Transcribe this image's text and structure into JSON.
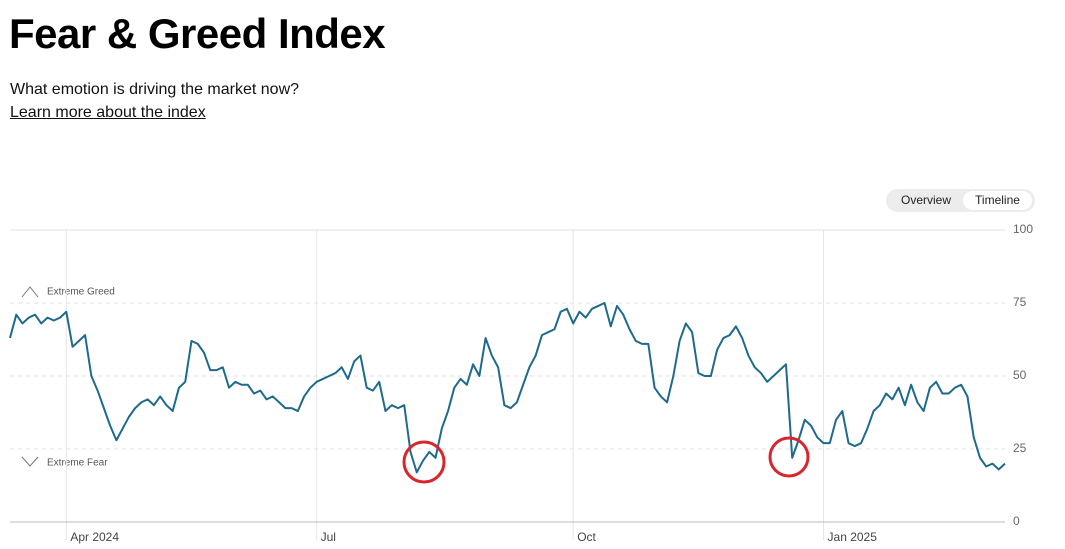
{
  "title": "Fear & Greed Index",
  "subtitle": "What emotion is driving the market now?",
  "link": "Learn more about the index",
  "toggle": [
    "Overview",
    "Timeline"
  ],
  "chart_data": {
    "type": "line",
    "annotations": [
      "Extreme Greed",
      "Extreme Fear"
    ],
    "categories": [
      null,
      null,
      null,
      null,
      null,
      null,
      null,
      null,
      null,
      "Apr 2024",
      null,
      null,
      null,
      null,
      null,
      null,
      null,
      null,
      null,
      null,
      null,
      null,
      null,
      null,
      null,
      null,
      null,
      null,
      null,
      null,
      null,
      null,
      null,
      null,
      null,
      null,
      null,
      null,
      null,
      null,
      null,
      null,
      null,
      null,
      null,
      null,
      null,
      null,
      null,
      "Jul",
      null,
      null,
      null,
      null,
      null,
      null,
      null,
      null,
      null,
      null,
      null,
      null,
      null,
      null,
      null,
      null,
      null,
      null,
      null,
      null,
      null,
      null,
      null,
      null,
      null,
      null,
      null,
      null,
      null,
      null,
      null,
      null,
      null,
      null,
      null,
      null,
      null,
      null,
      null,
      null,
      "Oct",
      null,
      null,
      null,
      null,
      null,
      null,
      null,
      null,
      null,
      null,
      null,
      null,
      null,
      null,
      null,
      null,
      null,
      null,
      null,
      null,
      null,
      null,
      null,
      null,
      null,
      null,
      null,
      null,
      null,
      null,
      null,
      null,
      null,
      null,
      null,
      null,
      null,
      null,
      null,
      "Jan 2025",
      null,
      null,
      null,
      null,
      null,
      null,
      null,
      null,
      null,
      null,
      null,
      null,
      null,
      null,
      null,
      null,
      null,
      null,
      null,
      null,
      null,
      null,
      null,
      null,
      null,
      null,
      null,
      null,
      null
    ],
    "values": [
      63,
      71,
      68,
      70,
      71,
      68,
      70,
      69,
      70,
      72,
      60,
      62,
      64,
      50,
      45,
      39,
      33,
      28,
      32,
      36,
      39,
      41,
      42,
      40,
      43,
      40,
      38,
      46,
      48,
      62,
      61,
      58,
      52,
      52,
      53,
      46,
      48,
      47,
      47,
      44,
      45,
      42,
      43,
      41,
      39,
      39,
      38,
      43,
      46,
      48,
      49,
      50,
      51,
      53,
      49,
      55,
      57,
      46,
      45,
      48,
      38,
      40,
      39,
      40,
      24,
      17,
      21,
      24,
      22,
      32,
      38,
      46,
      49,
      47,
      54,
      50,
      63,
      57,
      53,
      40,
      39,
      41,
      47,
      53,
      57,
      64,
      65,
      66,
      72,
      73,
      68,
      72,
      70,
      73,
      74,
      75,
      67,
      74,
      71,
      66,
      62,
      61,
      61,
      46,
      43,
      41,
      50,
      62,
      68,
      65,
      51,
      50,
      50,
      59,
      63,
      64,
      67,
      63,
      57,
      53,
      51,
      48,
      50,
      52,
      54,
      22,
      28,
      35,
      33,
      29,
      27,
      27,
      35,
      38,
      27,
      26,
      27,
      32,
      38,
      40,
      44,
      42,
      46,
      40,
      47,
      41,
      38,
      46,
      48,
      44,
      44,
      46,
      47,
      43,
      29,
      22,
      19,
      20,
      18,
      20
    ],
    "color": "#1f6a8c",
    "ylim": [
      0,
      100
    ],
    "yticks": [
      0,
      25,
      50,
      75,
      100
    ],
    "grid": true
  }
}
